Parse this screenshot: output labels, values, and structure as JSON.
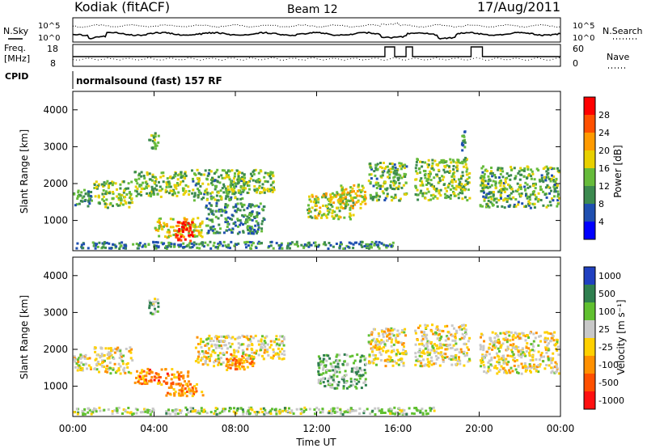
{
  "header": {
    "station": "Kodiak (fitACF)",
    "beam": "Beam 12",
    "date": "17/Aug/2011",
    "cpid_text": "normalsound (fast) 157 RF"
  },
  "noise_panel": {
    "left_label": "N.Sky",
    "right_label": "N.Search",
    "ticks": [
      "10^5",
      "10^0"
    ]
  },
  "freq_panel": {
    "left_label_line1": "Freq.",
    "left_label_line2": "[MHz]",
    "left_ticks": [
      "18",
      "8"
    ],
    "right_label": "Nave",
    "right_ticks": [
      "60",
      "0"
    ],
    "cpid_label": "CPID"
  },
  "x_axis": {
    "label": "Time UT",
    "ticks": [
      "00:00",
      "04:00",
      "08:00",
      "12:00",
      "16:00",
      "20:00",
      "00:00"
    ]
  },
  "colors": {
    "power": [
      "#0000ff",
      "#1f4fb0",
      "#3c8a4f",
      "#66bb3b",
      "#e8d000",
      "#ff9a00",
      "#ff5000",
      "#ff0000"
    ],
    "velocity": [
      "#2040c0",
      "#2f7f4f",
      "#60c030",
      "#c8c8c8",
      "#ffd000",
      "#ff9000",
      "#ff5000",
      "#ff1010"
    ]
  },
  "chart_data": [
    {
      "type": "heatmap",
      "title": "Power",
      "xlabel": "Time UT",
      "ylabel": "Slant Range [km]",
      "xlim": [
        0,
        24
      ],
      "ylim": [
        180,
        4500
      ],
      "y_ticks": [
        "1000",
        "2000",
        "3000",
        "4000"
      ],
      "colorbar": {
        "label": "Power [dB]",
        "ticks": [
          "4",
          "8",
          "12",
          "16",
          "20",
          "24",
          "28"
        ],
        "range": [
          0,
          32
        ]
      },
      "regions": [
        {
          "t0": 0.0,
          "t1": 1.0,
          "r0": 1350,
          "r1": 1900,
          "level": 0.35
        },
        {
          "t0": 1.0,
          "t1": 3.0,
          "r0": 1300,
          "r1": 2100,
          "level": 0.45
        },
        {
          "t0": 3.0,
          "t1": 5.8,
          "r0": 1600,
          "r1": 2350,
          "level": 0.45
        },
        {
          "t0": 4.0,
          "t1": 6.5,
          "r0": 500,
          "r1": 1100,
          "level": 0.55
        },
        {
          "t0": 5.0,
          "t1": 6.0,
          "r0": 400,
          "r1": 1000,
          "level": 0.95
        },
        {
          "t0": 5.8,
          "t1": 8.5,
          "r0": 1500,
          "r1": 2400,
          "level": 0.4
        },
        {
          "t0": 6.5,
          "t1": 9.5,
          "r0": 600,
          "r1": 1500,
          "level": 0.3
        },
        {
          "t0": 7.5,
          "t1": 10.0,
          "r0": 1700,
          "r1": 2400,
          "level": 0.45
        },
        {
          "t0": 3.7,
          "t1": 4.3,
          "r0": 2900,
          "r1": 3400,
          "level": 0.45
        },
        {
          "t0": 11.5,
          "t1": 14.0,
          "r0": 1000,
          "r1": 1800,
          "level": 0.5
        },
        {
          "t0": 13.0,
          "t1": 14.5,
          "r0": 1300,
          "r1": 2000,
          "level": 0.55
        },
        {
          "t0": 14.5,
          "t1": 16.5,
          "r0": 1500,
          "r1": 2600,
          "level": 0.4
        },
        {
          "t0": 16.8,
          "t1": 19.6,
          "r0": 1500,
          "r1": 2700,
          "level": 0.45
        },
        {
          "t0": 20.0,
          "t1": 24.0,
          "r0": 1300,
          "r1": 2500,
          "level": 0.4
        },
        {
          "t0": 19.1,
          "t1": 19.4,
          "r0": 2500,
          "r1": 3500,
          "level": 0.3
        },
        {
          "t0": 0.0,
          "t1": 16.0,
          "r0": 200,
          "r1": 450,
          "level": 0.3
        }
      ]
    },
    {
      "type": "heatmap",
      "title": "Velocity",
      "xlabel": "Time UT",
      "ylabel": "Slant Range [km]",
      "xlim": [
        0,
        24
      ],
      "ylim": [
        180,
        4500
      ],
      "y_ticks": [
        "1000",
        "2000",
        "3000",
        "4000"
      ],
      "colorbar": {
        "label": "Velocity [m s⁻¹]",
        "ticks": [
          "1000",
          "500",
          "100",
          "25",
          "-25",
          "-100",
          "-500",
          "-1000"
        ],
        "range": [
          -1200,
          1200
        ]
      },
      "regions": [
        {
          "t0": 0.0,
          "t1": 1.0,
          "r0": 1350,
          "r1": 1900,
          "level": 0.5
        },
        {
          "t0": 1.0,
          "t1": 3.0,
          "r0": 1300,
          "r1": 2100,
          "level": 0.5
        },
        {
          "t0": 3.0,
          "t1": 5.8,
          "r0": 1000,
          "r1": 1500,
          "level": 0.72
        },
        {
          "t0": 4.5,
          "t1": 6.5,
          "r0": 700,
          "r1": 1100,
          "level": 0.66
        },
        {
          "t0": 6.0,
          "t1": 8.5,
          "r0": 1500,
          "r1": 2400,
          "level": 0.5
        },
        {
          "t0": 7.5,
          "t1": 9.0,
          "r0": 1400,
          "r1": 1900,
          "level": 0.7
        },
        {
          "t0": 8.5,
          "t1": 10.5,
          "r0": 1700,
          "r1": 2400,
          "level": 0.5
        },
        {
          "t0": 3.7,
          "t1": 4.3,
          "r0": 2900,
          "r1": 3400,
          "level": 0.35
        },
        {
          "t0": 12.0,
          "t1": 14.5,
          "r0": 900,
          "r1": 1900,
          "level": 0.3
        },
        {
          "t0": 14.5,
          "t1": 16.5,
          "r0": 1500,
          "r1": 2600,
          "level": 0.5
        },
        {
          "t0": 16.8,
          "t1": 19.6,
          "r0": 1500,
          "r1": 2700,
          "level": 0.5
        },
        {
          "t0": 20.0,
          "t1": 24.0,
          "r0": 1300,
          "r1": 2500,
          "level": 0.5
        },
        {
          "t0": 0.0,
          "t1": 18.0,
          "r0": 200,
          "r1": 450,
          "level": 0.4
        }
      ]
    }
  ]
}
